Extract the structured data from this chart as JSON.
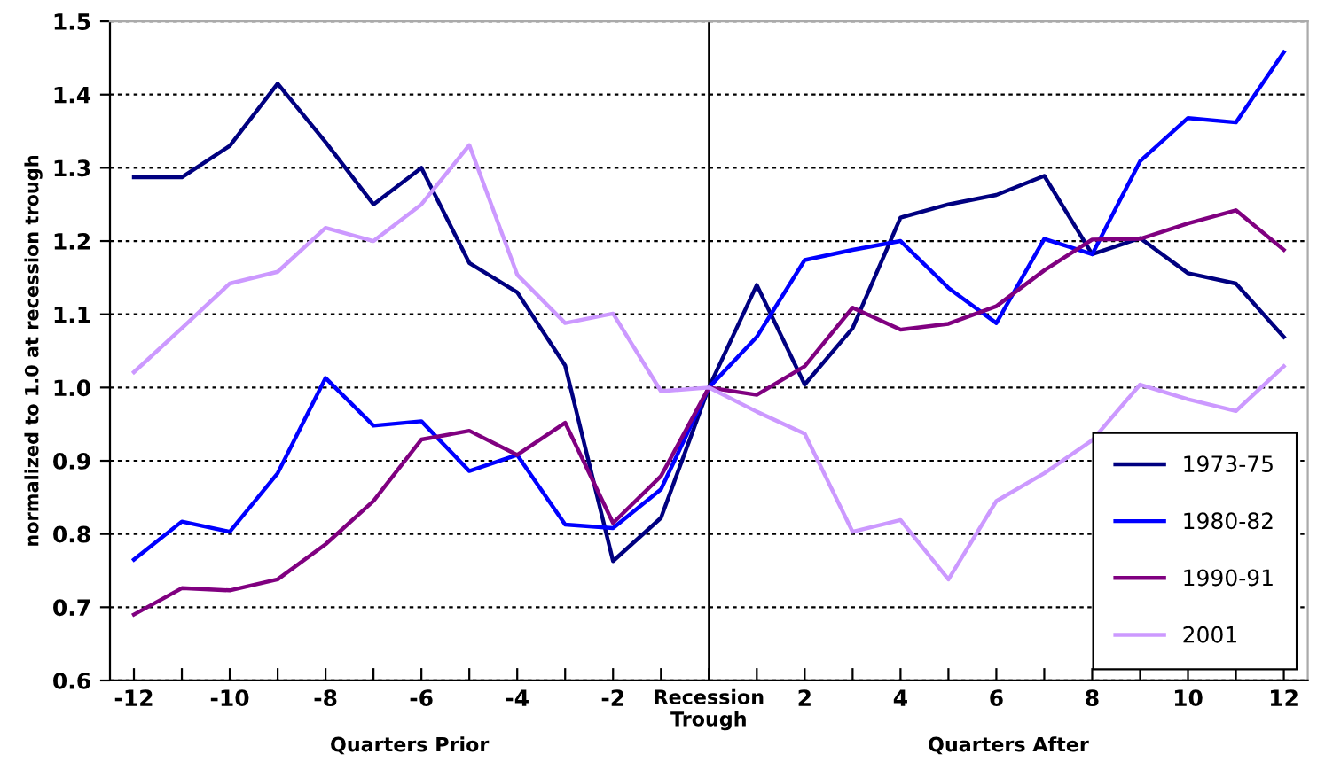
{
  "chart_data": {
    "type": "line",
    "ylabel": "normalized to 1.0 at recession trough",
    "x": [
      -12,
      -11,
      -10,
      -9,
      -8,
      -7,
      -6,
      -5,
      -4,
      -3,
      -2,
      -1,
      0,
      1,
      2,
      3,
      4,
      5,
      6,
      7,
      8,
      9,
      10,
      11,
      12
    ],
    "xlim": [
      -12.5,
      12.5
    ],
    "xticks": [
      -12,
      {
        "value": -11,
        "label": null
      },
      -10,
      {
        "value": -9,
        "label": null
      },
      -8,
      {
        "value": -7,
        "label": null
      },
      -6,
      {
        "value": -5,
        "label": null
      },
      -4,
      {
        "value": -3,
        "label": null
      },
      -2,
      {
        "value": -1,
        "label": null
      },
      {
        "value": 0,
        "label": "Recession\nTrough"
      },
      {
        "value": 1,
        "label": null
      },
      2,
      {
        "value": 3,
        "label": null
      },
      4,
      {
        "value": 5,
        "label": null
      },
      6,
      {
        "value": 7,
        "label": null
      },
      8,
      {
        "value": 9,
        "label": null
      },
      10,
      {
        "value": 11,
        "label": null
      },
      12
    ],
    "ylim": [
      0.6,
      1.5
    ],
    "yticks": [
      {
        "value": 0.6,
        "label": "0.6"
      },
      {
        "value": 0.7,
        "label": "0.7"
      },
      {
        "value": 0.8,
        "label": "0.8"
      },
      {
        "value": 0.9,
        "label": "0.9"
      },
      {
        "value": 1.0,
        "label": "1.0"
      },
      {
        "value": 1.1,
        "label": "1.1"
      },
      {
        "value": 1.2,
        "label": "1.2"
      },
      {
        "value": 1.3,
        "label": "1.3"
      },
      {
        "value": 1.4,
        "label": "1.4"
      },
      {
        "value": 1.5,
        "label": "1.5"
      }
    ],
    "grid": "y",
    "legend": "bottom right",
    "marker": "none",
    "line_style": "solid",
    "ref_lines": [
      {
        "axis": "x",
        "value": 0,
        "color": "#000000"
      }
    ],
    "annotations": [
      "Quarters Prior",
      "Quarters After"
    ],
    "series": [
      {
        "name": "1973-75",
        "color": "#000080",
        "values": [
          1.287,
          1.287,
          1.33,
          1.415,
          1.335,
          1.25,
          1.3,
          1.17,
          1.13,
          1.03,
          0.763,
          0.822,
          1.0,
          1.14,
          1.004,
          1.081,
          1.232,
          1.25,
          1.263,
          1.289,
          1.182,
          1.204,
          1.156,
          1.142,
          1.069
        ]
      },
      {
        "name": "1980-82",
        "color": "#0000ff",
        "values": [
          0.765,
          0.817,
          0.803,
          0.883,
          1.013,
          0.948,
          0.954,
          0.886,
          0.908,
          0.813,
          0.808,
          0.861,
          1.0,
          1.069,
          1.174,
          1.188,
          1.2,
          1.136,
          1.088,
          1.203,
          1.182,
          1.309,
          1.368,
          1.362,
          1.458
        ]
      },
      {
        "name": "1990-91",
        "color": "#800080",
        "values": [
          0.69,
          0.726,
          0.723,
          0.738,
          0.786,
          0.845,
          0.929,
          0.941,
          0.908,
          0.952,
          0.815,
          0.879,
          1.0,
          0.99,
          1.029,
          1.109,
          1.079,
          1.087,
          1.111,
          1.16,
          1.202,
          1.203,
          1.224,
          1.242,
          1.188
        ]
      },
      {
        "name": "2001",
        "color": "#cc99ff",
        "values": [
          1.021,
          1.081,
          1.142,
          1.158,
          1.218,
          1.2,
          1.25,
          1.331,
          1.154,
          1.088,
          1.101,
          0.995,
          1.0,
          0.967,
          0.937,
          0.803,
          0.819,
          0.738,
          0.845,
          0.883,
          0.928,
          1.004,
          0.984,
          0.968,
          1.029
        ]
      }
    ]
  }
}
